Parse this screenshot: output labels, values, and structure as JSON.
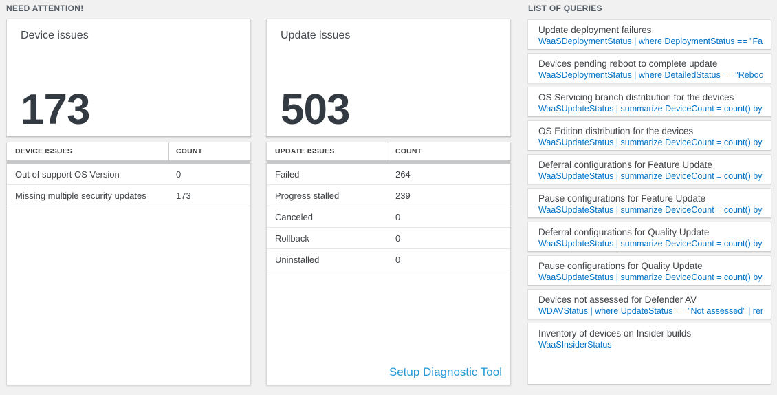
{
  "need_attention": {
    "header": "NEED ATTENTION!",
    "device_card": {
      "title": "Device issues",
      "big_number": "173",
      "table": {
        "col_label": "DEVICE ISSUES",
        "col_count": "COUNT",
        "rows": [
          {
            "label": "Out of support OS Version",
            "count": "0"
          },
          {
            "label": "Missing multiple security updates",
            "count": "173"
          }
        ]
      }
    },
    "update_card": {
      "title": "Update issues",
      "big_number": "503",
      "table": {
        "col_label": "UPDATE ISSUES",
        "col_count": "COUNT",
        "rows": [
          {
            "label": "Failed",
            "count": "264"
          },
          {
            "label": "Progress stalled",
            "count": "239"
          },
          {
            "label": "Canceled",
            "count": "0"
          },
          {
            "label": "Rollback",
            "count": "0"
          },
          {
            "label": "Uninstalled",
            "count": "0"
          }
        ]
      },
      "footer_link": "Setup Diagnostic Tool"
    }
  },
  "queries": {
    "header": "LIST OF QUERIES",
    "items": [
      {
        "title": "Update deployment failures",
        "query": "WaaSDeploymentStatus | where DeploymentStatus == \"Failed\" |..."
      },
      {
        "title": "Devices pending reboot to complete update",
        "query": "WaaSDeploymentStatus | where DetailedStatus == \"Reboot pend..."
      },
      {
        "title": "OS Servicing branch distribution for the devices",
        "query": "WaaSUpdateStatus | summarize DeviceCount = count() by OSSer..."
      },
      {
        "title": "OS Edition distribution for the devices",
        "query": "WaaSUpdateStatus | summarize DeviceCount = count() by OSEdit..."
      },
      {
        "title": "Deferral configurations for Feature Update",
        "query": "WaaSUpdateStatus | summarize DeviceCount = count() by Featur..."
      },
      {
        "title": "Pause configurations for Feature Update",
        "query": "WaaSUpdateStatus | summarize DeviceCount = count() by Featur..."
      },
      {
        "title": "Deferral configurations for Quality Update",
        "query": "WaaSUpdateStatus | summarize DeviceCount = count() by Qualit..."
      },
      {
        "title": "Pause configurations for Quality Update",
        "query": "WaaSUpdateStatus | summarize DeviceCount = count() by Qualit..."
      },
      {
        "title": "Devices not assessed for Defender AV",
        "query": "WDAVStatus | where UpdateStatus == \"Not assessed\" | render ta..."
      },
      {
        "title": "Inventory of devices on Insider builds",
        "query": "WaaSInsiderStatus"
      }
    ]
  },
  "colors": {
    "page_background": "#f1f1f1",
    "query_link_blue": "#0072c6",
    "setup_link_blue": "#219bd8",
    "big_number_color": "#333a42",
    "thick_bar_gray": "#c7c8ca"
  }
}
